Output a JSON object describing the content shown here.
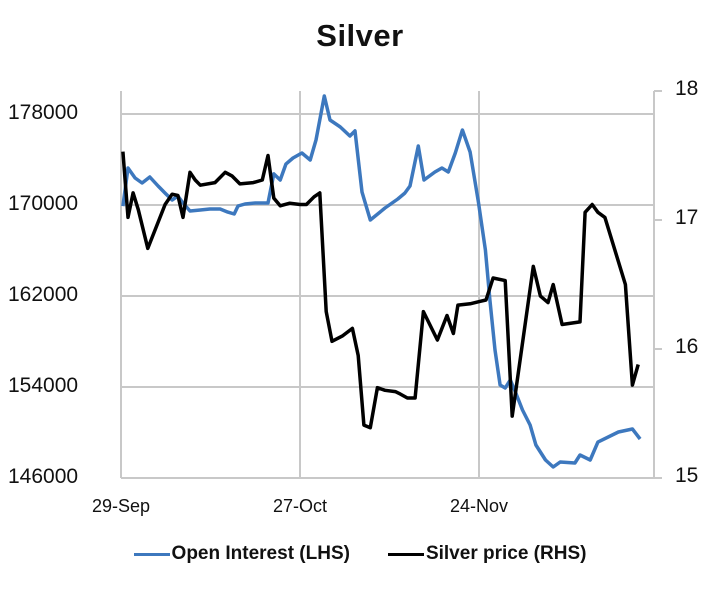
{
  "chart_data": {
    "type": "line",
    "title": "Silver",
    "xlabel": "",
    "ylabel_left": "Open Interest",
    "ylabel_right": "Silver price",
    "x_unit": "days since 29-Sep",
    "x_ticks": [
      {
        "label": "29-Sep",
        "day": 0
      },
      {
        "label": "27-Oct",
        "day": 28
      },
      {
        "label": "24-Nov",
        "day": 56
      }
    ],
    "x_range": [
      0,
      83.5
    ],
    "y_left": {
      "ticks": [
        178000,
        170000,
        162000,
        154000,
        146000
      ],
      "range": [
        146000,
        180000
      ]
    },
    "y_right": {
      "ticks": [
        18,
        17,
        16,
        15
      ],
      "range": [
        15,
        18
      ]
    },
    "grid": true,
    "legend_position": "bottom",
    "series": [
      {
        "name": "Open Interest (LHS)",
        "axis": "left",
        "color": "#3d78be",
        "x": [
          0.3,
          1.1,
          2.2,
          3.3,
          4.5,
          5.8,
          6.9,
          8.0,
          8.9,
          9.7,
          10.8,
          12.4,
          13.9,
          15.5,
          16.7,
          17.7,
          18.3,
          19.4,
          21.0,
          22.1,
          23.0,
          23.9,
          24.9,
          25.8,
          26.9,
          28.3,
          29.6,
          30.5,
          31.8,
          32.7,
          34.3,
          35.8,
          36.6,
          37.7,
          39.0,
          41.3,
          43.3,
          44.4,
          45.2,
          46.5,
          47.4,
          49.1,
          50.2,
          51.2,
          52.3,
          53.4,
          54.6,
          55.9,
          57.0,
          57.7,
          58.5,
          59.3,
          60.1,
          60.9,
          61.7,
          62.8,
          64.0,
          64.9,
          66.4,
          67.6,
          68.7,
          71.0,
          71.8,
          73.4,
          74.6,
          77.8,
          80.0,
          81.2
        ],
        "values": [
          169900,
          173250,
          172370,
          171930,
          172460,
          171670,
          171050,
          170440,
          170790,
          170180,
          169470,
          169560,
          169650,
          169650,
          169380,
          169210,
          169910,
          170090,
          170180,
          170180,
          170180,
          172730,
          172200,
          173600,
          174130,
          174570,
          173960,
          175710,
          179580,
          177470,
          176860,
          176070,
          176510,
          171140,
          168680,
          169740,
          170530,
          171050,
          171670,
          175190,
          172200,
          172900,
          173250,
          172900,
          174570,
          176590,
          174660,
          170260,
          166040,
          161650,
          157250,
          154180,
          153910,
          154620,
          153560,
          151980,
          150660,
          148900,
          147580,
          146970,
          147410,
          147320,
          148020,
          147580,
          149160,
          150040,
          150310,
          149430
        ]
      },
      {
        "name": "Silver price (RHS)",
        "axis": "right",
        "color": "#000000",
        "x": [
          0.3,
          1.1,
          1.9,
          2.7,
          4.2,
          6.9,
          8.0,
          8.9,
          9.7,
          10.8,
          11.6,
          12.4,
          14.7,
          16.3,
          17.4,
          18.6,
          20.7,
          22.1,
          23.0,
          23.9,
          24.9,
          26.4,
          28.0,
          29.0,
          30.2,
          31.1,
          32.1,
          33.0,
          34.6,
          36.2,
          37.1,
          38.0,
          39.0,
          40.1,
          41.3,
          42.9,
          43.7,
          44.8,
          46.0,
          47.3,
          49.5,
          51.0,
          52.0,
          52.7,
          54.6,
          56.2,
          57.1,
          58.2,
          60.1,
          61.2,
          64.5,
          65.6,
          66.8,
          67.6,
          69.0,
          71.8,
          72.6,
          73.7,
          74.6,
          75.7,
          78.9,
          80.0,
          80.9
        ],
        "values": [
          17.53,
          17.02,
          17.21,
          17.08,
          16.78,
          17.12,
          17.2,
          17.19,
          17.02,
          17.37,
          17.31,
          17.27,
          17.29,
          17.37,
          17.34,
          17.28,
          17.29,
          17.31,
          17.5,
          17.17,
          17.11,
          17.13,
          17.12,
          17.12,
          17.18,
          17.21,
          16.29,
          16.06,
          16.1,
          16.16,
          15.95,
          15.41,
          15.39,
          15.7,
          15.68,
          15.67,
          15.65,
          15.62,
          15.62,
          16.29,
          16.07,
          16.26,
          16.12,
          16.34,
          16.35,
          16.37,
          16.38,
          16.55,
          16.53,
          15.48,
          16.64,
          16.41,
          16.36,
          16.5,
          16.19,
          16.21,
          17.06,
          17.12,
          17.06,
          17.02,
          16.5,
          15.72,
          15.88
        ]
      }
    ]
  },
  "legend": {
    "items": [
      {
        "label": "Open Interest (LHS)",
        "color": "#3d78be"
      },
      {
        "label": "Silver price (RHS)",
        "color": "#000000"
      }
    ]
  }
}
